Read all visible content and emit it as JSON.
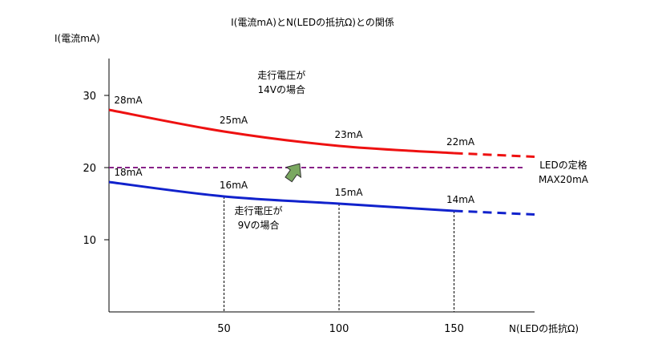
{
  "chart_data": {
    "type": "line",
    "title": "I(電流mA)とN(LEDの抵抗Ω)との関係",
    "ylabel": "I(電流mA)",
    "xlabel": "N(LEDの抵抗Ω)",
    "xlim": [
      0,
      185
    ],
    "ylim": [
      0,
      40
    ],
    "xticks": [
      "50",
      "100",
      "150"
    ],
    "yticks": [
      "10",
      "20",
      "30"
    ],
    "grid": false,
    "series": [
      {
        "name": "走行電圧が14Vの場合",
        "color": "#ee1111",
        "x": [
          0,
          50,
          100,
          150
        ],
        "y": [
          28,
          25,
          23,
          22
        ],
        "point_labels": [
          "28mA",
          "25mA",
          "23mA",
          "22mA"
        ],
        "extension": {
          "x": [
            150,
            185
          ],
          "y": [
            22,
            21.5
          ]
        }
      },
      {
        "name": "走行電圧が9Vの場合",
        "color": "#1122cc",
        "x": [
          0,
          50,
          100,
          150
        ],
        "y": [
          18,
          16,
          15,
          14
        ],
        "point_labels": [
          "18mA",
          "16mA",
          "15mA",
          "14mA"
        ],
        "extension": {
          "x": [
            150,
            185
          ],
          "y": [
            14,
            13.5
          ]
        }
      }
    ],
    "reference_line": {
      "y": 20,
      "color": "#882288",
      "label_lines": [
        "LEDの定格",
        "MAX20mA"
      ]
    },
    "vertical_guides_x": [
      50,
      100,
      150
    ],
    "series_annotations": [
      {
        "series": 0,
        "lines": [
          "走行電圧が",
          "14Vの場合"
        ]
      },
      {
        "series": 1,
        "lines": [
          "走行電圧が",
          "9Vの場合"
        ]
      }
    ],
    "arrow_color": "#7aa860"
  }
}
